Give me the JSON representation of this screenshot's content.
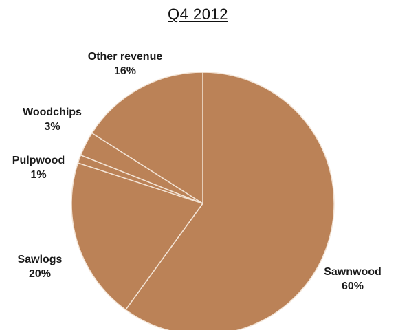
{
  "chart_data": {
    "type": "pie",
    "title": "Q4 2012",
    "colors": {
      "slice": "#bb8257",
      "border": "#f3e4d6"
    },
    "slices": [
      {
        "name": "Sawnwood",
        "value": 60,
        "label": "60%"
      },
      {
        "name": "Sawlogs",
        "value": 20,
        "label": "20%"
      },
      {
        "name": "Pulpwood",
        "value": 1,
        "label": "1%"
      },
      {
        "name": "Woodchips",
        "value": 3,
        "label": "3%"
      },
      {
        "name": "Other revenue",
        "value": 16,
        "label": "16%"
      }
    ]
  }
}
